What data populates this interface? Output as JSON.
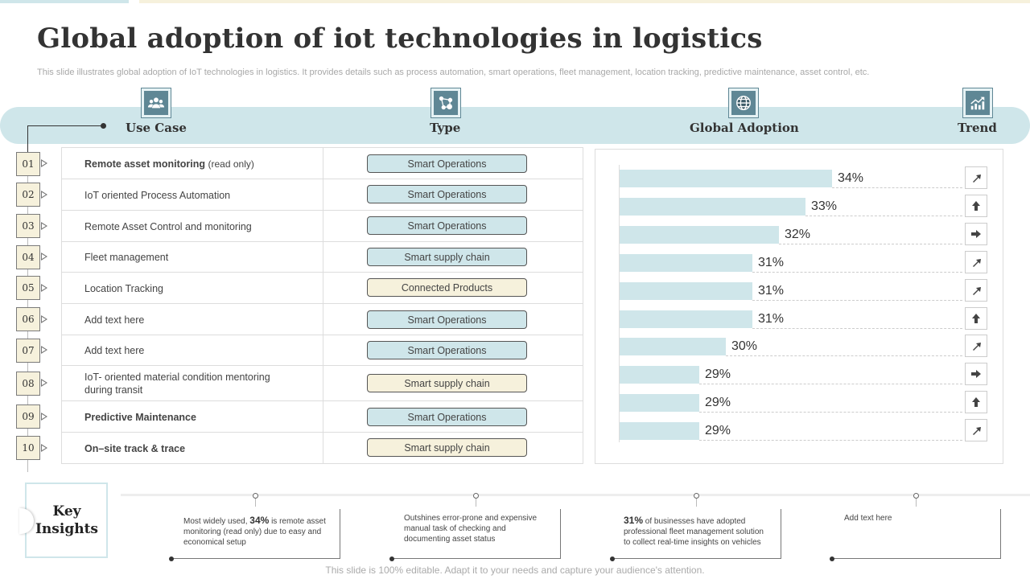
{
  "title": "Global adoption of iot technologies in logistics",
  "subtitle": "This slide illustrates global adoption of IoT technologies in logistics. It provides details such as process automation, smart operations, fleet management, location tracking, predictive maintenance, asset control, etc.",
  "columns": {
    "use_case": "Use Case",
    "type": "Type",
    "global_adoption": "Global Adoption",
    "trend": "Trend"
  },
  "icons": {
    "use_case": "team-icon",
    "type": "network-nodes-icon",
    "global_adoption": "globe-icon",
    "trend": "growth-chart-icon"
  },
  "colors": {
    "accent_blue": "#cfe6ea",
    "accent_yellow": "#f6f1dc",
    "icon_fill": "#5f8795"
  },
  "rows": [
    {
      "num": "01",
      "use_case": "Remote  asset  monitoring",
      "use_case_sub": "(read only)",
      "bold": true,
      "type": "Smart Operations",
      "pill": "blue"
    },
    {
      "num": "02",
      "use_case": "IoT oriented  Process Automation",
      "use_case_sub": "",
      "bold": false,
      "type": "Smart Operations",
      "pill": "blue"
    },
    {
      "num": "03",
      "use_case": "Remote Asset Control and monitoring",
      "use_case_sub": "",
      "bold": false,
      "type": "Smart Operations",
      "pill": "blue"
    },
    {
      "num": "04",
      "use_case": "Fleet management",
      "use_case_sub": "",
      "bold": false,
      "type": "Smart supply chain",
      "pill": "blue"
    },
    {
      "num": "05",
      "use_case": "Location Tracking",
      "use_case_sub": "",
      "bold": false,
      "type": "Connected Products",
      "pill": "yellow"
    },
    {
      "num": "06",
      "use_case": "Add text here",
      "use_case_sub": "",
      "bold": false,
      "type": "Smart Operations",
      "pill": "blue"
    },
    {
      "num": "07",
      "use_case": "Add text here",
      "use_case_sub": "",
      "bold": false,
      "type": "Smart Operations",
      "pill": "blue"
    },
    {
      "num": "08",
      "use_case": "IoT- oriented material  condition mentoring",
      "use_case_sub": "during transit",
      "bold": false,
      "type": "Smart supply chain",
      "pill": "yellow"
    },
    {
      "num": "09",
      "use_case": "Predictive Maintenance",
      "use_case_sub": "",
      "bold": true,
      "type": "Smart Operations",
      "pill": "blue"
    },
    {
      "num": "10",
      "use_case": "On–site track & trace",
      "use_case_sub": "",
      "bold": true,
      "type": "Smart supply chain",
      "pill": "yellow"
    }
  ],
  "chart_data": {
    "type": "bar",
    "orientation": "horizontal",
    "title": "Global Adoption",
    "categories": [
      "01",
      "02",
      "03",
      "04",
      "05",
      "06",
      "07",
      "08",
      "09",
      "10"
    ],
    "values": [
      34,
      33,
      32,
      31,
      31,
      31,
      30,
      29,
      29,
      29
    ],
    "labels": [
      "34%",
      "33%",
      "32%",
      "31%",
      "31%",
      "31%",
      "30%",
      "29%",
      "29%",
      "29%"
    ],
    "unit": "%",
    "xlim": [
      26,
      35
    ]
  },
  "trends": [
    "arrow-up-right-icon",
    "arrow-up-icon",
    "arrow-right-icon",
    "arrow-up-right-icon",
    "arrow-up-right-icon",
    "arrow-up-icon",
    "arrow-up-right-icon",
    "arrow-right-icon",
    "arrow-up-icon",
    "arrow-up-right-icon"
  ],
  "key_insights": {
    "title_line1": "Key",
    "title_line2": "Insights",
    "items": [
      {
        "highlight": "",
        "pre": "Most widely used, ",
        "value": "34%",
        "post": " is remote asset monitoring  (read only) due to easy and economical setup"
      },
      {
        "highlight": "",
        "pre": "Outshines error-prone and expensive manual task of checking and documenting asset status",
        "value": "",
        "post": ""
      },
      {
        "highlight": "",
        "pre": "",
        "value": "31%",
        "post": "  of businesses have adopted professional fleet management solution to collect real-time insights on vehicles"
      },
      {
        "highlight": "",
        "pre": "Add text here",
        "value": "",
        "post": ""
      }
    ]
  },
  "footer": "This slide is 100% editable. Adapt it to your needs and capture your audience's attention."
}
